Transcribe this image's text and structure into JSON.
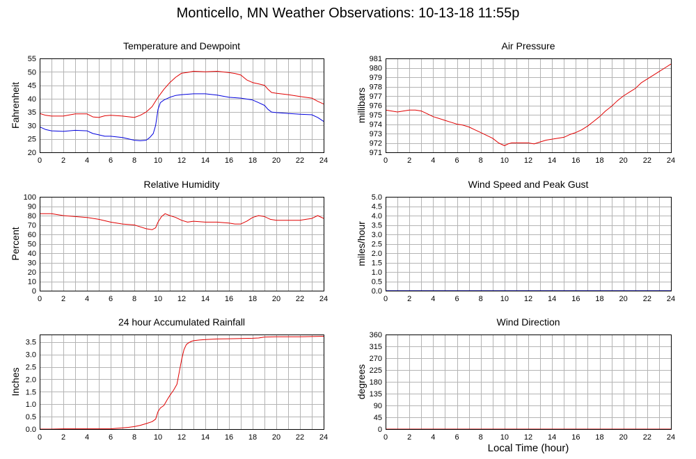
{
  "title": "Monticello, MN Weather Observations: 10-13-18 11:55p",
  "global_xlabel": "Local Time (hour)",
  "colors": {
    "red": "#e00000",
    "blue": "#0000dd",
    "grid": "#b4b4b4"
  },
  "chart_data": [
    {
      "id": "temp",
      "type": "line",
      "title": "Temperature and Dewpoint",
      "xlabel": "",
      "ylabel": "Fahrenheit",
      "xlim": [
        0,
        24
      ],
      "ylim": [
        20,
        55
      ],
      "xticks": [
        0,
        2,
        4,
        6,
        8,
        10,
        12,
        14,
        16,
        18,
        20,
        22,
        24
      ],
      "yticks": [
        20,
        25,
        30,
        35,
        40,
        45,
        50,
        55
      ],
      "grid": true,
      "series": [
        {
          "color": "#e00000",
          "x": [
            0,
            0.5,
            1,
            2,
            3,
            4,
            4.5,
            5,
            5.5,
            6,
            7,
            8,
            8.5,
            9,
            9.5,
            10,
            10.5,
            11,
            11.5,
            12,
            12.5,
            13,
            14,
            15,
            16,
            16.5,
            17,
            17.5,
            18,
            18.5,
            19,
            19.3,
            19.6,
            20,
            21,
            22,
            23,
            23.5,
            24
          ],
          "y": [
            34.5,
            33.8,
            33.5,
            33.5,
            34.3,
            34.3,
            33.2,
            33,
            33.6,
            33.8,
            33.5,
            33,
            33.8,
            35,
            37,
            40.5,
            43.5,
            46,
            48,
            49.5,
            49.8,
            50.2,
            50,
            50.2,
            49.7,
            49.4,
            48.8,
            47,
            46,
            45.5,
            45,
            43.5,
            42.3,
            42,
            41.5,
            40.8,
            40.2,
            39,
            38
          ]
        },
        {
          "color": "#0000dd",
          "x": [
            0,
            0.5,
            1,
            2,
            3,
            4,
            4.5,
            5,
            5.5,
            6,
            7,
            8,
            8.5,
            9,
            9.3,
            9.6,
            9.8,
            10,
            10.2,
            10.5,
            11,
            11.5,
            12,
            13,
            14,
            15,
            16,
            17,
            18,
            18.5,
            19,
            19.3,
            19.6,
            20,
            21,
            22,
            23,
            23.5,
            24
          ],
          "y": [
            29.5,
            28.5,
            28,
            27.8,
            28.2,
            28,
            27,
            26.5,
            26,
            26,
            25.5,
            24.5,
            24.3,
            24.5,
            25.5,
            27,
            30,
            36,
            38.5,
            39.5,
            40.5,
            41.2,
            41.5,
            41.8,
            41.8,
            41.3,
            40.5,
            40.2,
            39.5,
            38.5,
            37.5,
            36,
            35,
            34.8,
            34.5,
            34.2,
            34,
            33,
            31.5
          ]
        }
      ]
    },
    {
      "id": "pressure",
      "type": "line",
      "title": "Air Pressure",
      "xlabel": "",
      "ylabel": "millibars",
      "xlim": [
        0,
        24
      ],
      "ylim": [
        971,
        981
      ],
      "xticks": [
        0,
        2,
        4,
        6,
        8,
        10,
        12,
        14,
        16,
        18,
        20,
        22,
        24
      ],
      "yticks": [
        971,
        972,
        973,
        974,
        975,
        976,
        977,
        978,
        979,
        980,
        981
      ],
      "grid": true,
      "series": [
        {
          "color": "#e00000",
          "x": [
            0,
            0.5,
            1,
            1.5,
            2,
            2.5,
            3,
            3.5,
            4,
            4.5,
            5,
            5.5,
            6,
            6.5,
            7,
            7.5,
            8,
            8.5,
            9,
            9.5,
            10,
            10.3,
            10.6,
            11,
            11.5,
            12,
            12.5,
            13,
            13.5,
            14,
            14.5,
            15,
            15.5,
            16,
            16.5,
            17,
            17.5,
            18,
            18.5,
            19,
            19.5,
            20,
            20.5,
            21,
            21.5,
            22,
            22.5,
            23,
            23.5,
            24
          ],
          "y": [
            975.5,
            975.4,
            975.3,
            975.4,
            975.5,
            975.5,
            975.4,
            975.1,
            974.8,
            974.6,
            974.4,
            974.2,
            974.0,
            973.9,
            973.7,
            973.4,
            973.1,
            972.8,
            972.5,
            972.0,
            971.7,
            971.9,
            972.0,
            972.0,
            972.0,
            972.0,
            971.9,
            972.1,
            972.3,
            972.4,
            972.5,
            972.6,
            972.9,
            973.1,
            973.4,
            973.8,
            974.3,
            974.8,
            975.4,
            975.9,
            976.5,
            977.0,
            977.4,
            977.8,
            978.4,
            978.8,
            979.2,
            979.6,
            980.0,
            980.4
          ]
        }
      ]
    },
    {
      "id": "humidity",
      "type": "line",
      "title": "Relative Humidity",
      "xlabel": "",
      "ylabel": "Percent",
      "xlim": [
        0,
        24
      ],
      "ylim": [
        0,
        100
      ],
      "xticks": [
        0,
        2,
        4,
        6,
        8,
        10,
        12,
        14,
        16,
        18,
        20,
        22,
        24
      ],
      "yticks": [
        0,
        10,
        20,
        30,
        40,
        50,
        60,
        70,
        80,
        90,
        100
      ],
      "grid": true,
      "series": [
        {
          "color": "#e00000",
          "x": [
            0,
            1,
            2,
            3,
            4,
            5,
            6,
            7,
            8,
            8.5,
            9,
            9.5,
            9.8,
            10,
            10.3,
            10.6,
            11,
            11.5,
            12,
            12.5,
            13,
            14,
            15,
            16,
            16.5,
            17,
            17.5,
            18,
            18.5,
            19,
            19.5,
            20,
            21,
            22,
            22.5,
            23,
            23.5,
            24
          ],
          "y": [
            82,
            82,
            80,
            79,
            78,
            76,
            73,
            71,
            70,
            68,
            66,
            65,
            67,
            73,
            79,
            82,
            80,
            78,
            75,
            73,
            74,
            73,
            73,
            72,
            71,
            71,
            74,
            78,
            80,
            79,
            76,
            75,
            75,
            75,
            76,
            77,
            80,
            77
          ]
        }
      ]
    },
    {
      "id": "wind",
      "type": "line",
      "title": "Wind Speed and Peak Gust",
      "xlabel": "",
      "ylabel": "miles/hour",
      "xlim": [
        0,
        24
      ],
      "ylim": [
        0,
        5
      ],
      "xticks": [
        0,
        2,
        4,
        6,
        8,
        10,
        12,
        14,
        16,
        18,
        20,
        22,
        24
      ],
      "yticks": [
        0.0,
        0.5,
        1.0,
        1.5,
        2.0,
        2.5,
        3.0,
        3.5,
        4.0,
        4.5,
        5.0
      ],
      "ytick_labels": [
        "0.0",
        "0.5",
        "1.0",
        "1.5",
        "2.0",
        "2.5",
        "3.0",
        "3.5",
        "4.0",
        "4.5",
        "5.0"
      ],
      "grid": true,
      "series": [
        {
          "color": "#e00000",
          "x": [
            0,
            24
          ],
          "y": [
            0,
            0
          ]
        },
        {
          "color": "#0000dd",
          "x": [
            0,
            24
          ],
          "y": [
            0,
            0
          ]
        }
      ]
    },
    {
      "id": "rain",
      "type": "line",
      "title": "24 hour Accumulated Rainfall",
      "xlabel": "",
      "ylabel": "Inches",
      "xlim": [
        0,
        24
      ],
      "ylim": [
        0,
        3.8
      ],
      "xticks": [
        0,
        2,
        4,
        6,
        8,
        10,
        12,
        14,
        16,
        18,
        20,
        22,
        24
      ],
      "yticks": [
        0.0,
        0.5,
        1.0,
        1.5,
        2.0,
        2.5,
        3.0,
        3.5
      ],
      "ytick_labels": [
        "0.0",
        "0.5",
        "1.0",
        "1.5",
        "2.0",
        "2.5",
        "3.0",
        "3.5"
      ],
      "grid": true,
      "series": [
        {
          "color": "#e00000",
          "x": [
            0,
            1,
            2,
            3,
            4,
            5,
            6,
            6.5,
            7,
            7.5,
            8,
            8.5,
            9,
            9.5,
            9.8,
            10,
            10.2,
            10.5,
            10.8,
            11,
            11.3,
            11.6,
            11.8,
            12,
            12.2,
            12.4,
            12.6,
            12.8,
            13,
            13.5,
            14,
            15,
            16,
            17,
            18,
            18.5,
            19,
            20,
            21,
            22,
            23,
            24
          ],
          "y": [
            0,
            0,
            0.01,
            0.01,
            0.01,
            0.01,
            0.01,
            0.03,
            0.05,
            0.07,
            0.1,
            0.15,
            0.22,
            0.3,
            0.4,
            0.7,
            0.85,
            0.95,
            1.2,
            1.35,
            1.55,
            1.8,
            2.3,
            2.8,
            3.2,
            3.4,
            3.47,
            3.52,
            3.55,
            3.58,
            3.6,
            3.62,
            3.63,
            3.64,
            3.65,
            3.66,
            3.7,
            3.71,
            3.71,
            3.71,
            3.72,
            3.73
          ]
        }
      ]
    },
    {
      "id": "direction",
      "type": "line",
      "title": "Wind Direction",
      "xlabel": "",
      "ylabel": "degrees",
      "xlim": [
        0,
        24
      ],
      "ylim": [
        0,
        360
      ],
      "xticks": [
        0,
        2,
        4,
        6,
        8,
        10,
        12,
        14,
        16,
        18,
        20,
        22,
        24
      ],
      "yticks": [
        0,
        45,
        90,
        135,
        180,
        225,
        270,
        315,
        360
      ],
      "grid": true,
      "series": [
        {
          "color": "#e00000",
          "x": [
            0,
            24
          ],
          "y": [
            0,
            0
          ],
          "heavy": true
        }
      ]
    }
  ]
}
